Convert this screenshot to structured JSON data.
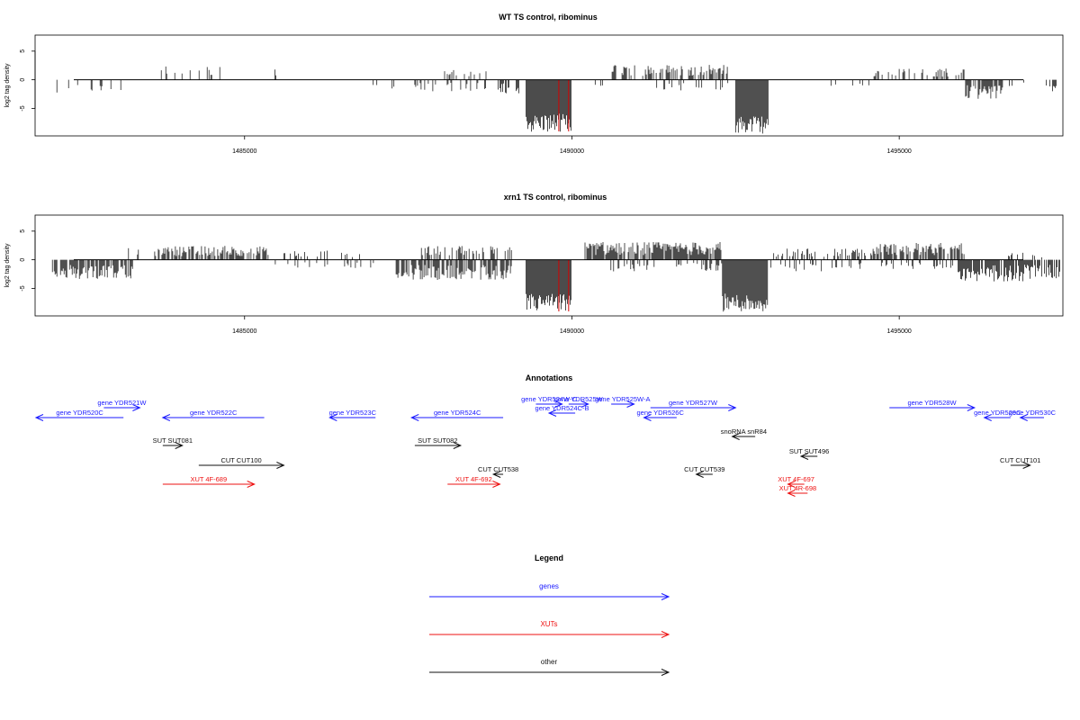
{
  "chart_data": [
    {
      "type": "bar",
      "title": "WT TS control, ribominus",
      "ylabel": "log2 tag density",
      "yticks": [
        "5",
        "0",
        "-5"
      ],
      "xticks": [
        "1485000",
        "1490000",
        "1495000"
      ],
      "xlim": [
        1481800,
        1497500
      ],
      "ylim": [
        -9.8,
        7.8
      ],
      "marker_positions": [
        1489800,
        1489950
      ],
      "marker_color": "#d40000",
      "profile": [
        {
          "start": 1482050,
          "end": 1483200,
          "mean": -1.8,
          "density": 0.18
        },
        {
          "start": 1483700,
          "end": 1484700,
          "mean": 1.8,
          "density": 0.2
        },
        {
          "start": 1485300,
          "end": 1485500,
          "mean": 1.6,
          "density": 0.15
        },
        {
          "start": 1485450,
          "end": 1485500,
          "mean": -2.5,
          "density": 0.3
        },
        {
          "start": 1486800,
          "end": 1487600,
          "mean": -1.2,
          "density": 0.12
        },
        {
          "start": 1487600,
          "end": 1488600,
          "mean": -1.5,
          "density": 0.35
        },
        {
          "start": 1488000,
          "end": 1488700,
          "mean": 1.6,
          "density": 0.15
        },
        {
          "start": 1488600,
          "end": 1489200,
          "mean": -1.8,
          "density": 0.35
        },
        {
          "start": 1489300,
          "end": 1490000,
          "mean": -7.5,
          "density": 1.0
        },
        {
          "start": 1490300,
          "end": 1490500,
          "mean": -1.0,
          "density": 0.2
        },
        {
          "start": 1490600,
          "end": 1492400,
          "mean": 2.0,
          "density": 0.45
        },
        {
          "start": 1491200,
          "end": 1492500,
          "mean": -1.5,
          "density": 0.15
        },
        {
          "start": 1492500,
          "end": 1493000,
          "mean": -7.8,
          "density": 1.0
        },
        {
          "start": 1493600,
          "end": 1494600,
          "mean": -1.1,
          "density": 0.1
        },
        {
          "start": 1494600,
          "end": 1496000,
          "mean": 1.5,
          "density": 0.25
        },
        {
          "start": 1496000,
          "end": 1496600,
          "mean": -2.5,
          "density": 0.85
        },
        {
          "start": 1496600,
          "end": 1497300,
          "mean": -1.0,
          "density": 0.1
        },
        {
          "start": 1497300,
          "end": 1497450,
          "mean": -1.8,
          "density": 0.6
        }
      ]
    },
    {
      "type": "bar",
      "title": "xrn1 TS control, ribominus",
      "ylabel": "log2 tag density",
      "yticks": [
        "5",
        "0",
        "-5"
      ],
      "xticks": [
        "1485000",
        "1490000",
        "1495000"
      ],
      "xlim": [
        1481800,
        1497500
      ],
      "ylim": [
        -9.8,
        7.8
      ],
      "marker_positions": [
        1489800,
        1489950
      ],
      "marker_color": "#d40000",
      "profile": [
        {
          "start": 1482050,
          "end": 1483300,
          "mean": -2.5,
          "density": 0.75
        },
        {
          "start": 1483200,
          "end": 1483400,
          "mean": 1.5,
          "density": 0.25
        },
        {
          "start": 1483600,
          "end": 1485400,
          "mean": 1.8,
          "density": 0.7
        },
        {
          "start": 1485400,
          "end": 1487300,
          "mean": -1.2,
          "density": 0.15
        },
        {
          "start": 1485600,
          "end": 1486800,
          "mean": 1.2,
          "density": 0.15
        },
        {
          "start": 1487300,
          "end": 1489100,
          "mean": -2.6,
          "density": 0.75
        },
        {
          "start": 1487700,
          "end": 1489100,
          "mean": 1.8,
          "density": 0.45
        },
        {
          "start": 1489300,
          "end": 1490000,
          "mean": -7.5,
          "density": 1.0
        },
        {
          "start": 1490200,
          "end": 1492300,
          "mean": 2.3,
          "density": 0.85
        },
        {
          "start": 1490500,
          "end": 1492300,
          "mean": -1.5,
          "density": 0.3
        },
        {
          "start": 1492300,
          "end": 1493000,
          "mean": -7.5,
          "density": 1.0
        },
        {
          "start": 1493000,
          "end": 1494600,
          "mean": 1.5,
          "density": 0.4
        },
        {
          "start": 1493000,
          "end": 1494600,
          "mean": -1.5,
          "density": 0.2
        },
        {
          "start": 1494600,
          "end": 1496000,
          "mean": 2.2,
          "density": 0.75
        },
        {
          "start": 1494700,
          "end": 1495900,
          "mean": -1.2,
          "density": 0.2
        },
        {
          "start": 1495900,
          "end": 1496900,
          "mean": -2.8,
          "density": 0.85
        },
        {
          "start": 1496600,
          "end": 1497400,
          "mean": 1.2,
          "density": 0.25
        },
        {
          "start": 1496900,
          "end": 1497450,
          "mean": -2.5,
          "density": 0.75
        }
      ]
    }
  ],
  "annotations": {
    "title": "Annotations",
    "items": [
      {
        "label": "gene YDR520C",
        "color": "#1a1aff",
        "x1": 1481800,
        "x2": 1483150,
        "row": 3,
        "dir": "left"
      },
      {
        "label": "gene YDR521W",
        "color": "#1a1aff",
        "x1": 1482850,
        "x2": 1483400,
        "row": 1,
        "dir": "right"
      },
      {
        "label": "gene YDR522C",
        "color": "#1a1aff",
        "x1": 1483750,
        "x2": 1485300,
        "row": 3,
        "dir": "left"
      },
      {
        "label": "gene YDR523C",
        "color": "#1a1aff",
        "x1": 1486300,
        "x2": 1487000,
        "row": 3,
        "dir": "left"
      },
      {
        "label": "gene YDR524C",
        "color": "#1a1aff",
        "x1": 1487550,
        "x2": 1488950,
        "row": 3,
        "dir": "left"
      },
      {
        "label": "gene YDR524W-C",
        "color": "#1a1aff",
        "x1": 1489450,
        "x2": 1489850,
        "row": 0,
        "dir": "right"
      },
      {
        "label": "gene YDR525W",
        "color": "#1a1aff",
        "x1": 1489950,
        "x2": 1490250,
        "row": 0,
        "dir": "right"
      },
      {
        "label": "gene YDR525W-A",
        "color": "#1a1aff",
        "x1": 1490600,
        "x2": 1490950,
        "row": 0,
        "dir": "right"
      },
      {
        "label": "gene YDR527W",
        "color": "#1a1aff",
        "x1": 1491200,
        "x2": 1492500,
        "row": 1,
        "dir": "right"
      },
      {
        "label": "gene YDR524C-B",
        "color": "#1a1aff",
        "x1": 1489650,
        "x2": 1490050,
        "row": 2,
        "dir": "left"
      },
      {
        "label": "gene YDR526C",
        "color": "#1a1aff",
        "x1": 1491100,
        "x2": 1491600,
        "row": 3,
        "dir": "left"
      },
      {
        "label": "gene YDR528W",
        "color": "#1a1aff",
        "x1": 1494850,
        "x2": 1496150,
        "row": 1,
        "dir": "right"
      },
      {
        "label": "gene YDR529C",
        "color": "#1a1aff",
        "x1": 1496300,
        "x2": 1496700,
        "row": 3,
        "dir": "left"
      },
      {
        "label": "gene YDR530C",
        "color": "#1a1aff",
        "x1": 1496850,
        "x2": 1497550,
        "row": 3,
        "dir": "left"
      },
      {
        "label": "snoRNA snR84",
        "color": "#111111",
        "x1": 1492450,
        "x2": 1492800,
        "row": 4,
        "dir": "left"
      },
      {
        "label": "SUT SUT081",
        "color": "#111111",
        "x1": 1483750,
        "x2": 1484050,
        "row": 5,
        "dir": "right"
      },
      {
        "label": "SUT SUT082",
        "color": "#111111",
        "x1": 1487600,
        "x2": 1488300,
        "row": 5,
        "dir": "right"
      },
      {
        "label": "SUT SUT496",
        "color": "#111111",
        "x1": 1493500,
        "x2": 1493750,
        "row": 6,
        "dir": "left"
      },
      {
        "label": "CUT CUT100",
        "color": "#111111",
        "x1": 1484300,
        "x2": 1485600,
        "row": 7,
        "dir": "right"
      },
      {
        "label": "CUT CUT101",
        "color": "#111111",
        "x1": 1496700,
        "x2": 1497000,
        "row": 7,
        "dir": "right"
      },
      {
        "label": "CUT CUT538",
        "color": "#111111",
        "x1": 1488800,
        "x2": 1488950,
        "row": 8,
        "dir": "left"
      },
      {
        "label": "CUT CUT539",
        "color": "#111111",
        "x1": 1491900,
        "x2": 1492150,
        "row": 8,
        "dir": "left"
      },
      {
        "label": "XUT 4F-689",
        "color": "#ee1111",
        "x1": 1483750,
        "x2": 1485150,
        "row": 9,
        "dir": "right"
      },
      {
        "label": "XUT 4F-692",
        "color": "#ee1111",
        "x1": 1488100,
        "x2": 1488900,
        "row": 9,
        "dir": "right"
      },
      {
        "label": "XUT 4F-697",
        "color": "#ee1111",
        "x1": 1493300,
        "x2": 1493550,
        "row": 10,
        "dir": "left"
      },
      {
        "label": "XUT 4R-698",
        "color": "#ee1111",
        "x1": 1493300,
        "x2": 1493600,
        "row": 11,
        "dir": "left"
      }
    ]
  },
  "legend": {
    "title": "Legend",
    "items": [
      {
        "label": "genes",
        "color": "#1a1aff"
      },
      {
        "label": "XUTs",
        "color": "#ee1111"
      },
      {
        "label": "other",
        "color": "#111111"
      }
    ]
  }
}
